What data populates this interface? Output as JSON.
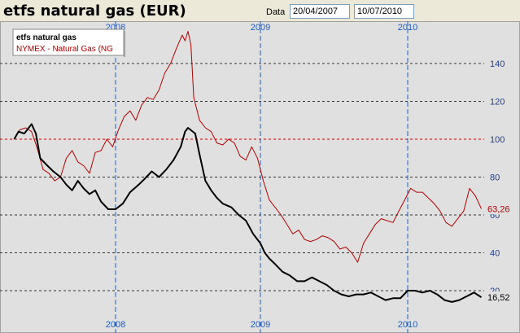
{
  "header": {
    "title": "etfs natural gas (EUR)",
    "date_label": "Data",
    "date_from": "20/04/2007",
    "date_to": "10/07/2010"
  },
  "colors": {
    "background": "#e0e0e0",
    "etfs": "#000000",
    "nymex": "#b00000",
    "grid_h": "#333333",
    "grid_ref": "#c00000",
    "grid_v": "#1f5fbf",
    "tick_x": "#1f5fbf",
    "tick_y": "#1f3f8f"
  },
  "chart_data": {
    "type": "line",
    "x_ticks": [
      "2008",
      "2009",
      "2010"
    ],
    "y_ticks": [
      20,
      40,
      60,
      80,
      100,
      120,
      140
    ],
    "ylim": [
      7,
      165
    ],
    "xlim": [
      2007.3,
      2010.52
    ],
    "reference_line": 100,
    "legend_position": "top-left",
    "last_values": [
      "63,26",
      "16,52"
    ],
    "series": [
      {
        "name": "etfs natural gas",
        "color": "#000000",
        "x": [
          2007.3,
          2007.33,
          2007.37,
          2007.42,
          2007.45,
          2007.48,
          2007.53,
          2007.57,
          2007.62,
          2007.66,
          2007.7,
          2007.74,
          2007.78,
          2007.82,
          2007.86,
          2007.9,
          2007.95,
          2008.0,
          2008.05,
          2008.1,
          2008.16,
          2008.2,
          2008.25,
          2008.3,
          2008.35,
          2008.4,
          2008.45,
          2008.48,
          2008.5,
          2008.55,
          2008.58,
          2008.62,
          2008.66,
          2008.7,
          2008.74,
          2008.8,
          2008.85,
          2008.9,
          2008.95,
          2009.0,
          2009.03,
          2009.06,
          2009.1,
          2009.15,
          2009.2,
          2009.25,
          2009.3,
          2009.35,
          2009.4,
          2009.45,
          2009.5,
          2009.55,
          2009.6,
          2009.65,
          2009.7,
          2009.75,
          2009.8,
          2009.85,
          2009.9,
          2009.95,
          2010.0,
          2010.05,
          2010.1,
          2010.15,
          2010.2,
          2010.25,
          2010.3,
          2010.35,
          2010.4,
          2010.45,
          2010.5
        ],
        "values": [
          100,
          104,
          103,
          108,
          103,
          90,
          86,
          83,
          80,
          76,
          73,
          78,
          74,
          71,
          73,
          67,
          63,
          63,
          66,
          72,
          76,
          79,
          83,
          80,
          84,
          89,
          96,
          104,
          106,
          103,
          92,
          78,
          73,
          69,
          66,
          64,
          60,
          57,
          50,
          45,
          40,
          37,
          34,
          30,
          28,
          25,
          25,
          27,
          25,
          23,
          20,
          18,
          17,
          18,
          18,
          19,
          17,
          15,
          16,
          16,
          20,
          20,
          19,
          20,
          18,
          15,
          14,
          15,
          17,
          19,
          16.52
        ]
      },
      {
        "name": "NYMEX - Natural Gas (NG",
        "color": "#b00000",
        "x": [
          2007.3,
          2007.34,
          2007.38,
          2007.42,
          2007.46,
          2007.5,
          2007.54,
          2007.58,
          2007.62,
          2007.66,
          2007.7,
          2007.74,
          2007.78,
          2007.82,
          2007.86,
          2007.9,
          2007.94,
          2007.98,
          2008.02,
          2008.06,
          2008.1,
          2008.14,
          2008.18,
          2008.22,
          2008.26,
          2008.3,
          2008.34,
          2008.38,
          2008.42,
          2008.46,
          2008.48,
          2008.5,
          2008.52,
          2008.54,
          2008.58,
          2008.62,
          2008.66,
          2008.7,
          2008.74,
          2008.78,
          2008.82,
          2008.86,
          2008.9,
          2008.94,
          2008.98,
          2009.02,
          2009.06,
          2009.1,
          2009.14,
          2009.18,
          2009.22,
          2009.26,
          2009.3,
          2009.34,
          2009.38,
          2009.42,
          2009.46,
          2009.5,
          2009.54,
          2009.58,
          2009.62,
          2009.66,
          2009.7,
          2009.74,
          2009.78,
          2009.82,
          2009.86,
          2009.9,
          2009.94,
          2009.98,
          2010.02,
          2010.06,
          2010.1,
          2010.14,
          2010.18,
          2010.22,
          2010.26,
          2010.3,
          2010.34,
          2010.38,
          2010.42,
          2010.46,
          2010.5
        ],
        "values": [
          100,
          105,
          106,
          104,
          95,
          84,
          82,
          78,
          80,
          90,
          94,
          88,
          86,
          82,
          93,
          94,
          100,
          96,
          105,
          112,
          115,
          110,
          118,
          122,
          121,
          126,
          135,
          140,
          148,
          155,
          152,
          157,
          150,
          122,
          110,
          106,
          104,
          98,
          97,
          100,
          98,
          91,
          89,
          96,
          90,
          78,
          68,
          64,
          60,
          55,
          50,
          52,
          47,
          46,
          47,
          49,
          48,
          46,
          42,
          43,
          40,
          35,
          45,
          50,
          55,
          58,
          57,
          56,
          62,
          68,
          74,
          72,
          72,
          69,
          66,
          62,
          56,
          54,
          58,
          62,
          74,
          70,
          63.26
        ]
      }
    ]
  }
}
